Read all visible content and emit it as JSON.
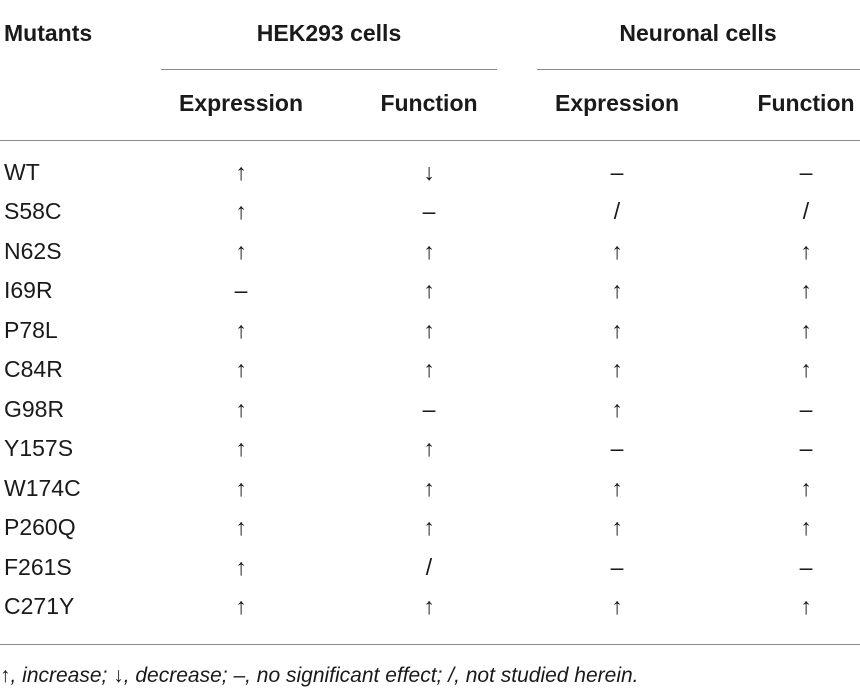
{
  "table": {
    "header": {
      "col0": "Mutants",
      "group1": "HEK293 cells",
      "group2": "Neuronal cells",
      "sub": [
        "Expression",
        "Function",
        "Expression",
        "Function"
      ]
    },
    "rows": [
      {
        "mutant": "WT",
        "values": [
          "↑",
          "↓",
          "–",
          "–"
        ]
      },
      {
        "mutant": "S58C",
        "values": [
          "↑",
          "–",
          "/",
          "/"
        ]
      },
      {
        "mutant": "N62S",
        "values": [
          "↑",
          "↑",
          "↑",
          "↑"
        ]
      },
      {
        "mutant": "I69R",
        "values": [
          "–",
          "↑",
          "↑",
          "↑"
        ]
      },
      {
        "mutant": "P78L",
        "values": [
          "↑",
          "↑",
          "↑",
          "↑"
        ]
      },
      {
        "mutant": "C84R",
        "values": [
          "↑",
          "↑",
          "↑",
          "↑"
        ]
      },
      {
        "mutant": "G98R",
        "values": [
          "↑",
          "–",
          "↑",
          "–"
        ]
      },
      {
        "mutant": "Y157S",
        "values": [
          "↑",
          "↑",
          "–",
          "–"
        ]
      },
      {
        "mutant": "W174C",
        "values": [
          "↑",
          "↑",
          "↑",
          "↑"
        ]
      },
      {
        "mutant": "P260Q",
        "values": [
          "↑",
          "↑",
          "↑",
          "↑"
        ]
      },
      {
        "mutant": "F261S",
        "values": [
          "↑",
          "/",
          "–",
          "–"
        ]
      },
      {
        "mutant": "C271Y",
        "values": [
          "↑",
          "↑",
          "↑",
          "↑"
        ]
      }
    ],
    "footnote": "↑, increase; ↓, decrease; –, no significant effect; /, not studied herein."
  }
}
